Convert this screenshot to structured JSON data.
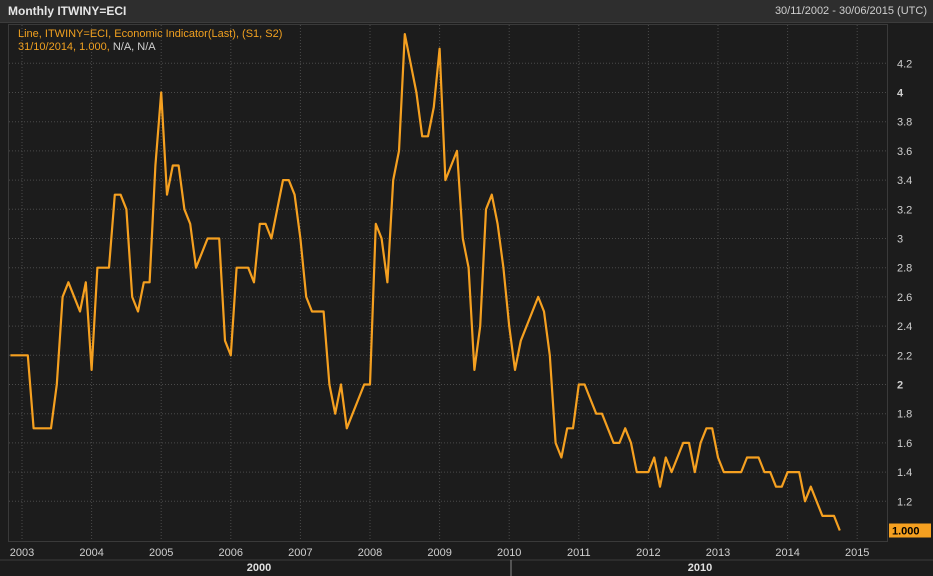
{
  "header": {
    "title": "Monthly ITWINY=ECI",
    "date_range": "30/11/2002 - 30/06/2015 (UTC)"
  },
  "legend": {
    "line1": "Line, ITWINY=ECI, Economic Indicator(Last), (S1, S2)",
    "line2_prefix": "31/10/2014, 1.000,",
    "line2_na": "N/A, N/A"
  },
  "last_value_badge": "1.000",
  "colors": {
    "series": "#f5a020",
    "background": "#1c1c1c",
    "grid": "#4a4a4a",
    "text": "#cfcfcf"
  },
  "chart_data": {
    "type": "line",
    "x_ticks": [
      "2003",
      "2004",
      "2005",
      "2006",
      "2007",
      "2008",
      "2009",
      "2010",
      "2011",
      "2012",
      "2013",
      "2014",
      "2015"
    ],
    "x_major_labels": [
      "2000",
      "2010"
    ],
    "y_ticks": [
      "1.2",
      "1.4",
      "1.6",
      "1.8",
      "2",
      "2.2",
      "2.4",
      "2.6",
      "2.8",
      "3",
      "3.2",
      "3.4",
      "3.6",
      "3.8",
      "4",
      "4.2"
    ],
    "bold_y_ticks": [
      "2",
      "4"
    ],
    "ylim": [
      1.0,
      4.35
    ],
    "grid": true,
    "series": [
      {
        "points": [
          [
            "2002-11",
            2.2
          ],
          [
            "2002-12",
            2.2
          ],
          [
            "2003-01",
            2.2
          ],
          [
            "2003-02",
            2.2
          ],
          [
            "2003-03",
            1.7
          ],
          [
            "2003-04",
            1.7
          ],
          [
            "2003-05",
            1.7
          ],
          [
            "2003-06",
            1.7
          ],
          [
            "2003-07",
            2.0
          ],
          [
            "2003-08",
            2.6
          ],
          [
            "2003-09",
            2.7
          ],
          [
            "2003-10",
            2.6
          ],
          [
            "2003-11",
            2.5
          ],
          [
            "2003-12",
            2.7
          ],
          [
            "2004-01",
            2.1
          ],
          [
            "2004-02",
            2.8
          ],
          [
            "2004-03",
            2.8
          ],
          [
            "2004-04",
            2.8
          ],
          [
            "2004-05",
            3.3
          ],
          [
            "2004-06",
            3.3
          ],
          [
            "2004-07",
            3.2
          ],
          [
            "2004-08",
            2.6
          ],
          [
            "2004-09",
            2.5
          ],
          [
            "2004-10",
            2.7
          ],
          [
            "2004-11",
            2.7
          ],
          [
            "2004-12",
            3.5
          ],
          [
            "2005-01",
            4.0
          ],
          [
            "2005-02",
            3.3
          ],
          [
            "2005-03",
            3.5
          ],
          [
            "2005-04",
            3.5
          ],
          [
            "2005-05",
            3.2
          ],
          [
            "2005-06",
            3.1
          ],
          [
            "2005-07",
            2.8
          ],
          [
            "2005-08",
            2.9
          ],
          [
            "2005-09",
            3.0
          ],
          [
            "2005-10",
            3.0
          ],
          [
            "2005-11",
            3.0
          ],
          [
            "2005-12",
            2.3
          ],
          [
            "2006-01",
            2.2
          ],
          [
            "2006-02",
            2.8
          ],
          [
            "2006-03",
            2.8
          ],
          [
            "2006-04",
            2.8
          ],
          [
            "2006-05",
            2.7
          ],
          [
            "2006-06",
            3.1
          ],
          [
            "2006-07",
            3.1
          ],
          [
            "2006-08",
            3.0
          ],
          [
            "2006-09",
            3.2
          ],
          [
            "2006-10",
            3.4
          ],
          [
            "2006-11",
            3.4
          ],
          [
            "2006-12",
            3.3
          ],
          [
            "2007-01",
            3.0
          ],
          [
            "2007-02",
            2.6
          ],
          [
            "2007-03",
            2.5
          ],
          [
            "2007-04",
            2.5
          ],
          [
            "2007-05",
            2.5
          ],
          [
            "2007-06",
            2.0
          ],
          [
            "2007-07",
            1.8
          ],
          [
            "2007-08",
            2.0
          ],
          [
            "2007-09",
            1.7
          ],
          [
            "2007-10",
            1.8
          ],
          [
            "2007-11",
            1.9
          ],
          [
            "2007-12",
            2.0
          ],
          [
            "2008-01",
            2.0
          ],
          [
            "2008-02",
            3.1
          ],
          [
            "2008-03",
            3.0
          ],
          [
            "2008-04",
            2.7
          ],
          [
            "2008-05",
            3.4
          ],
          [
            "2008-06",
            3.6
          ],
          [
            "2008-07",
            4.4
          ],
          [
            "2008-08",
            4.2
          ],
          [
            "2008-09",
            4.0
          ],
          [
            "2008-10",
            3.7
          ],
          [
            "2008-11",
            3.7
          ],
          [
            "2008-12",
            3.9
          ],
          [
            "2009-01",
            4.3
          ],
          [
            "2009-02",
            3.4
          ],
          [
            "2009-03",
            3.5
          ],
          [
            "2009-04",
            3.6
          ],
          [
            "2009-05",
            3.0
          ],
          [
            "2009-06",
            2.8
          ],
          [
            "2009-07",
            2.1
          ],
          [
            "2009-08",
            2.4
          ],
          [
            "2009-09",
            3.2
          ],
          [
            "2009-10",
            3.3
          ],
          [
            "2009-11",
            3.1
          ],
          [
            "2009-12",
            2.8
          ],
          [
            "2010-01",
            2.4
          ],
          [
            "2010-02",
            2.1
          ],
          [
            "2010-03",
            2.3
          ],
          [
            "2010-04",
            2.4
          ],
          [
            "2010-05",
            2.5
          ],
          [
            "2010-06",
            2.6
          ],
          [
            "2010-07",
            2.5
          ],
          [
            "2010-08",
            2.2
          ],
          [
            "2010-09",
            1.6
          ],
          [
            "2010-10",
            1.5
          ],
          [
            "2010-11",
            1.7
          ],
          [
            "2010-12",
            1.7
          ],
          [
            "2011-01",
            2.0
          ],
          [
            "2011-02",
            2.0
          ],
          [
            "2011-03",
            1.9
          ],
          [
            "2011-04",
            1.8
          ],
          [
            "2011-05",
            1.8
          ],
          [
            "2011-06",
            1.7
          ],
          [
            "2011-07",
            1.6
          ],
          [
            "2011-08",
            1.6
          ],
          [
            "2011-09",
            1.7
          ],
          [
            "2011-10",
            1.6
          ],
          [
            "2011-11",
            1.4
          ],
          [
            "2011-12",
            1.4
          ],
          [
            "2012-01",
            1.4
          ],
          [
            "2012-02",
            1.5
          ],
          [
            "2012-03",
            1.3
          ],
          [
            "2012-04",
            1.5
          ],
          [
            "2012-05",
            1.4
          ],
          [
            "2012-06",
            1.5
          ],
          [
            "2012-07",
            1.6
          ],
          [
            "2012-08",
            1.6
          ],
          [
            "2012-09",
            1.4
          ],
          [
            "2012-10",
            1.6
          ],
          [
            "2012-11",
            1.7
          ],
          [
            "2012-12",
            1.7
          ],
          [
            "2013-01",
            1.5
          ],
          [
            "2013-02",
            1.4
          ],
          [
            "2013-03",
            1.4
          ],
          [
            "2013-04",
            1.4
          ],
          [
            "2013-05",
            1.4
          ],
          [
            "2013-06",
            1.5
          ],
          [
            "2013-07",
            1.5
          ],
          [
            "2013-08",
            1.5
          ],
          [
            "2013-09",
            1.4
          ],
          [
            "2013-10",
            1.4
          ],
          [
            "2013-11",
            1.3
          ],
          [
            "2013-12",
            1.3
          ],
          [
            "2014-01",
            1.4
          ],
          [
            "2014-02",
            1.4
          ],
          [
            "2014-03",
            1.4
          ],
          [
            "2014-04",
            1.2
          ],
          [
            "2014-05",
            1.3
          ],
          [
            "2014-06",
            1.2
          ],
          [
            "2014-07",
            1.1
          ],
          [
            "2014-08",
            1.1
          ],
          [
            "2014-09",
            1.1
          ],
          [
            "2014-10",
            1.0
          ]
        ]
      }
    ]
  }
}
